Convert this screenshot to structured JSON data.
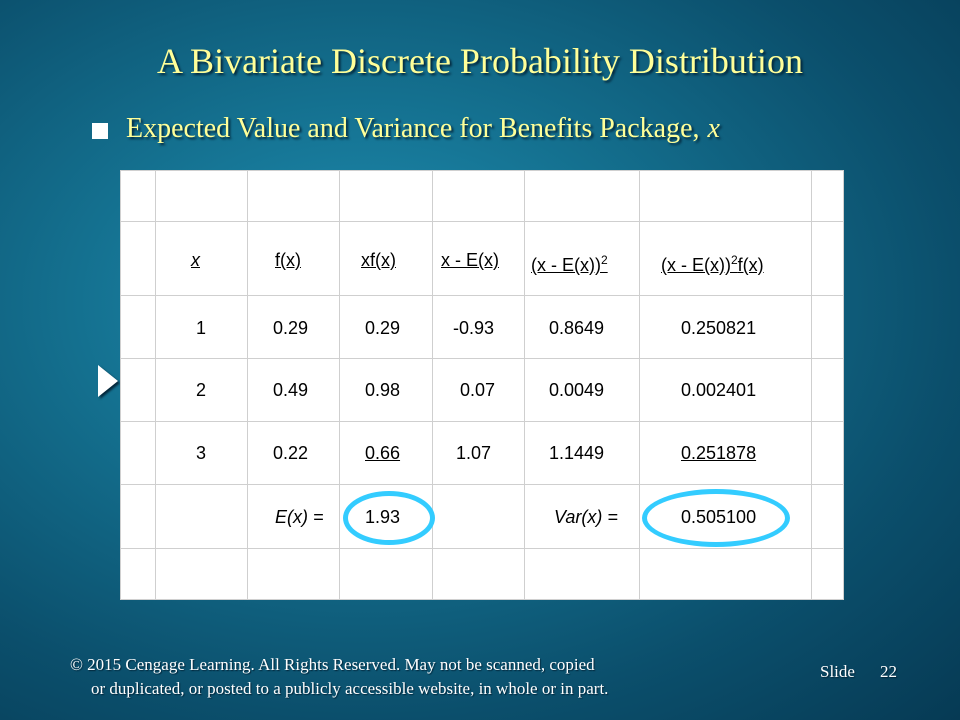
{
  "slide": {
    "title": "A Bivariate Discrete  Probability Distribution",
    "bullet": "Expected Value and Variance for Benefits Package,",
    "bullet_var": "x",
    "footer_line1": "© 2015  Cengage Learning.  All Rights Reserved.  May not be scanned, copied",
    "footer_line2": "or duplicated, or posted to a publicly accessible website, in whole or in part.",
    "slide_label": "Slide",
    "slide_number": "22"
  },
  "table": {
    "headers": {
      "x": "x",
      "fx": "f(x)",
      "xfx": "xf(x)",
      "dev": "x - E(x)",
      "devsq": "(x - E(x))",
      "devsq_exp": "2",
      "wdev_a": "(x - E(x))",
      "wdev_exp": "2",
      "wdev_b": "f(x)"
    },
    "rows": [
      {
        "x": "1",
        "fx": "0.29",
        "xfx": "0.29",
        "dev": "-0.93",
        "devsq": "0.8649",
        "wdev": "0.250821"
      },
      {
        "x": "2",
        "fx": "0.49",
        "xfx": "0.98",
        "dev": "0.07",
        "devsq": "0.0049",
        "wdev": "0.002401"
      },
      {
        "x": "3",
        "fx": "0.22",
        "xfx": "0.66",
        "dev": "1.07",
        "devsq": "1.1449",
        "wdev": "0.251878"
      }
    ],
    "totals": {
      "ex_label": "E(x) =",
      "ex_value": "1.93",
      "var_label": "Var(x) =",
      "var_value": "0.505100"
    }
  },
  "colors": {
    "title_text": "#ffff99",
    "highlight_circle": "#33ccff"
  }
}
